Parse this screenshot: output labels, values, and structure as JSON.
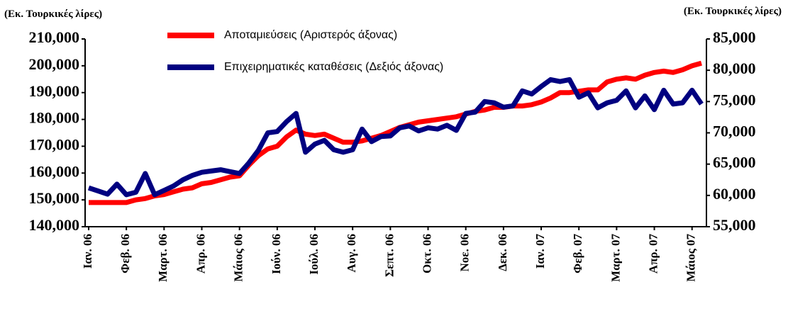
{
  "chart_data": {
    "type": "line",
    "y_axis_label": "(Εκ. Τουρκικές λίρες)",
    "y2_axis_label": "(Εκ. Τουρκικές λίρες)",
    "categories": [
      "Ιαν. 06",
      null,
      null,
      null,
      "Φεβ. 06",
      null,
      null,
      null,
      "Μαρτ. 06",
      null,
      null,
      null,
      "Απρ. 06",
      null,
      null,
      null,
      "Μάιος 06",
      null,
      null,
      null,
      "Ιούν. 06",
      null,
      null,
      null,
      "Ιούλ. 06",
      null,
      null,
      null,
      "Αυγ. 06",
      null,
      null,
      null,
      "Σεπτ. 06",
      null,
      null,
      null,
      "Οκτ. 06",
      null,
      null,
      null,
      "Νοε. 06",
      null,
      null,
      null,
      "Δεκ. 06",
      null,
      null,
      null,
      "Ιαν. 07",
      null,
      null,
      null,
      "Φεβ. 07",
      null,
      null,
      null,
      "Μαρτ. 07",
      null,
      null,
      null,
      "Απρ. 07",
      null,
      null,
      null,
      "Μάιος 07",
      null
    ],
    "series": [
      {
        "name": "Αποταμιεύσεις (Αριστερός άξονας)",
        "color": "#ff0000",
        "axis": "y",
        "values": [
          149000,
          149000,
          149000,
          149000,
          149000,
          150000,
          150500,
          151500,
          152000,
          153000,
          154000,
          154500,
          156000,
          156500,
          157500,
          158500,
          159000,
          163000,
          166500,
          169000,
          170000,
          173500,
          176000,
          174500,
          174000,
          174500,
          173000,
          171500,
          171500,
          172000,
          173000,
          174000,
          175500,
          177000,
          178000,
          179000,
          179500,
          180000,
          180500,
          181000,
          182000,
          183000,
          183500,
          184500,
          184500,
          185000,
          185000,
          185500,
          186500,
          188000,
          190000,
          190000,
          190500,
          191000,
          191000,
          194000,
          195000,
          195500,
          195000,
          196500,
          197500,
          198000,
          197500,
          198500,
          200000,
          201000
        ]
      },
      {
        "name": "Επιχειρηματικές καταθέσεις (Δεξιός άξονας)",
        "color": "#000080",
        "axis": "y2",
        "values": [
          61200,
          60700,
          60200,
          61800,
          60100,
          60500,
          63500,
          60100,
          60800,
          61500,
          62500,
          63200,
          63700,
          63900,
          64100,
          63800,
          63500,
          65200,
          67200,
          70000,
          70200,
          71800,
          73100,
          66900,
          68200,
          68800,
          67300,
          66900,
          67300,
          70600,
          68600,
          69400,
          69500,
          70800,
          71100,
          70300,
          70800,
          70600,
          71200,
          70400,
          73100,
          73300,
          75000,
          74800,
          74100,
          74300,
          76700,
          76200,
          77400,
          78500,
          78200,
          78500,
          75700,
          76400,
          74000,
          74800,
          75200,
          76700,
          74000,
          75900,
          73700,
          76800,
          74600,
          74800,
          76800,
          74600
        ]
      }
    ],
    "ylim": [
      140000,
      210000
    ],
    "yticks": [
      {
        "value": 140000,
        "label": "140,000"
      },
      {
        "value": 150000,
        "label": "150,000"
      },
      {
        "value": 160000,
        "label": "160,000"
      },
      {
        "value": 170000,
        "label": "170,000"
      },
      {
        "value": 180000,
        "label": "180,000"
      },
      {
        "value": 190000,
        "label": "190,000"
      },
      {
        "value": 200000,
        "label": "200,000"
      },
      {
        "value": 210000,
        "label": "210,000"
      }
    ],
    "y2lim": [
      55000,
      85000
    ],
    "y2ticks": [
      {
        "value": 55000,
        "label": "55,000"
      },
      {
        "value": 60000,
        "label": "60,000"
      },
      {
        "value": 65000,
        "label": "65,000"
      },
      {
        "value": 70000,
        "label": "70,000"
      },
      {
        "value": 75000,
        "label": "75,000"
      },
      {
        "value": 80000,
        "label": "80,000"
      },
      {
        "value": 85000,
        "label": "85,000"
      }
    ],
    "grid": false,
    "legend": "top"
  }
}
